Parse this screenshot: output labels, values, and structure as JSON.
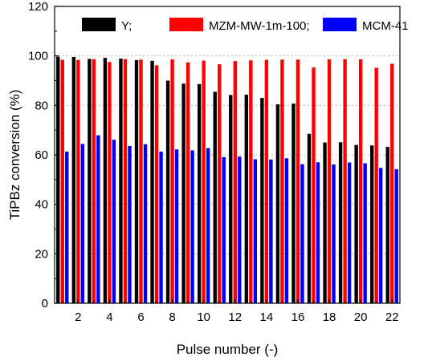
{
  "chart_data": {
    "type": "bar",
    "xlabel": "Pulse number (-)",
    "ylabel": "TiPBz  conversion (%)",
    "ylim": [
      0,
      120
    ],
    "y_ticks": [
      0,
      20,
      40,
      60,
      80,
      100,
      120
    ],
    "x_tick_labels": [
      "2",
      "4",
      "6",
      "8",
      "10",
      "12",
      "14",
      "16",
      "18",
      "20",
      "22"
    ],
    "x_tick_positions": [
      2,
      4,
      6,
      8,
      10,
      12,
      14,
      16,
      18,
      20,
      22
    ],
    "x": [
      1,
      2,
      3,
      4,
      5,
      6,
      7,
      8,
      9,
      10,
      11,
      12,
      13,
      14,
      15,
      16,
      17,
      18,
      19,
      20,
      21,
      22
    ],
    "grid": "horizontal-dotted",
    "legend_placement": "top",
    "series": [
      {
        "name": "Y;",
        "color": "#000000",
        "values": [
          99.7,
          99.6,
          98.8,
          99.2,
          98.9,
          98.3,
          98.0,
          90.0,
          88.8,
          88.6,
          85.5,
          84.2,
          84.3,
          83.0,
          80.4,
          80.7,
          68.5,
          65.0,
          65.1,
          64.0,
          63.8,
          63.2
        ]
      },
      {
        "name": "MZM-MW-1m-100;",
        "color": "#ff0000",
        "values": [
          98.4,
          98.4,
          98.7,
          97.5,
          98.7,
          98.5,
          96.2,
          98.6,
          97.4,
          98.1,
          96.6,
          97.9,
          98.2,
          98.4,
          98.5,
          98.5,
          95.3,
          98.6,
          98.7,
          98.6,
          95.2,
          96.8
        ]
      },
      {
        "name": "MCM-41",
        "color": "#0000ff",
        "values": [
          61.3,
          64.4,
          67.9,
          66.1,
          63.6,
          64.3,
          61.3,
          62.2,
          61.8,
          62.7,
          59.1,
          59.3,
          58.2,
          58.1,
          58.6,
          56.2,
          57.0,
          56.1,
          56.9,
          56.6,
          54.7,
          54.2
        ]
      }
    ]
  }
}
